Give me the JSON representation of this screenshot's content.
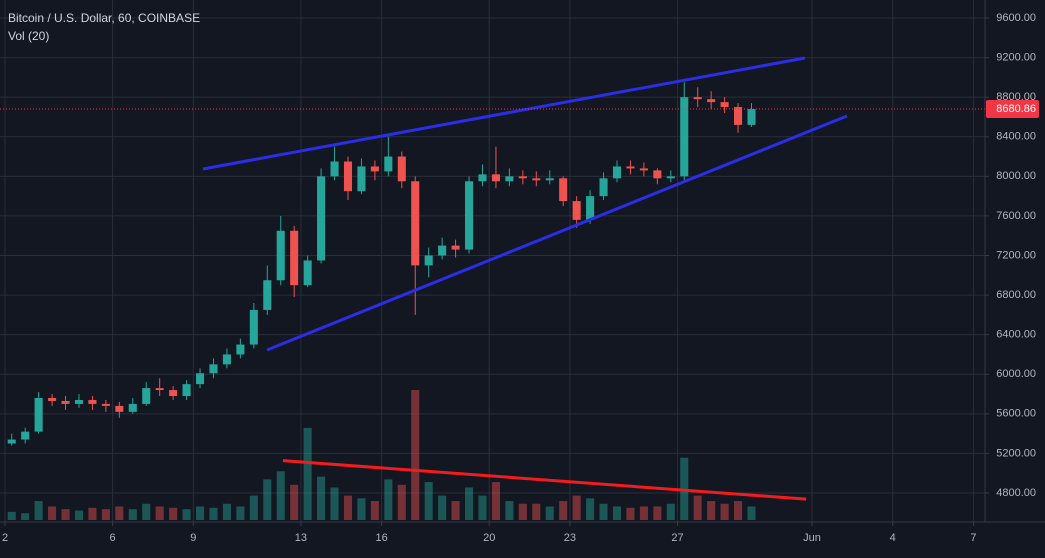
{
  "chart_data": {
    "type": "candlestick",
    "title": "Bitcoin / U.S. Dollar, 60, COINBASE",
    "subtitle": "Vol (20)",
    "x": [
      2.25,
      2.75,
      3.25,
      3.75,
      4.25,
      4.75,
      5.25,
      5.75,
      6.25,
      6.75,
      7.25,
      7.75,
      8.25,
      8.75,
      9.25,
      9.75,
      10.25,
      10.75,
      11.25,
      11.75,
      12.25,
      12.75,
      13.25,
      13.75,
      14.25,
      14.75,
      15.25,
      15.75,
      16.25,
      16.75,
      17.25,
      17.75,
      18.25,
      18.75,
      19.25,
      19.75,
      20.25,
      20.75,
      21.25,
      21.75,
      22.25,
      22.75,
      23.25,
      23.75,
      24.25,
      24.75,
      25.25,
      25.75,
      26.25,
      26.75,
      27.25,
      27.75,
      28.25,
      28.75,
      29.25,
      29.75
    ],
    "open": [
      5300,
      5340,
      5420,
      5760,
      5730,
      5700,
      5740,
      5700,
      5680,
      5620,
      5700,
      5860,
      5840,
      5780,
      5900,
      6010,
      6100,
      6200,
      6300,
      6650,
      6950,
      7450,
      6900,
      7150,
      8000,
      8150,
      7850,
      8100,
      8050,
      8200,
      7950,
      7100,
      7200,
      7300,
      7260,
      7950,
      8020,
      7950,
      8000,
      7980,
      7960,
      7980,
      7750,
      7560,
      7800,
      7980,
      8100,
      8080,
      8060,
      7980,
      8000,
      8800,
      8780,
      8750,
      8700,
      8520
    ],
    "high": [
      5400,
      5460,
      5820,
      5800,
      5780,
      5800,
      5780,
      5740,
      5720,
      5760,
      5920,
      5960,
      5880,
      5940,
      6060,
      6160,
      6260,
      6360,
      6720,
      7100,
      7600,
      7500,
      7200,
      8080,
      8300,
      8200,
      8180,
      8160,
      8400,
      8250,
      8000,
      7280,
      7380,
      7360,
      8000,
      8120,
      8300,
      8080,
      8060,
      8050,
      8060,
      8000,
      7800,
      7860,
      8040,
      8160,
      8160,
      8140,
      8080,
      8060,
      8950,
      8900,
      8860,
      8800,
      8740,
      8740
    ],
    "low": [
      5280,
      5300,
      5400,
      5680,
      5640,
      5660,
      5640,
      5620,
      5560,
      5600,
      5680,
      5780,
      5740,
      5740,
      5860,
      5960,
      6060,
      6160,
      6260,
      6600,
      6900,
      6780,
      6880,
      7120,
      7960,
      7760,
      7820,
      7960,
      8000,
      7880,
      6600,
      6980,
      7160,
      7180,
      7220,
      7900,
      7880,
      7900,
      7920,
      7900,
      7920,
      7700,
      7480,
      7520,
      7760,
      7940,
      8020,
      8000,
      7920,
      7940,
      7960,
      8700,
      8680,
      8640,
      8440,
      8500
    ],
    "close": [
      5340,
      5420,
      5760,
      5730,
      5700,
      5740,
      5700,
      5680,
      5620,
      5700,
      5860,
      5840,
      5780,
      5900,
      6010,
      6100,
      6200,
      6300,
      6650,
      6950,
      7450,
      6900,
      7150,
      8000,
      8150,
      7850,
      8100,
      8050,
      8200,
      7950,
      7100,
      7200,
      7300,
      7260,
      7950,
      8020,
      7950,
      8000,
      7980,
      7960,
      7980,
      7750,
      7560,
      7800,
      7980,
      8100,
      8080,
      8060,
      7980,
      8000,
      8800,
      8780,
      8750,
      8700,
      8520,
      8680
    ],
    "volume": [
      300,
      250,
      700,
      500,
      400,
      350,
      450,
      400,
      500,
      400,
      600,
      500,
      450,
      400,
      500,
      450,
      600,
      500,
      900,
      1500,
      1800,
      1300,
      3400,
      1600,
      1200,
      900,
      800,
      700,
      1500,
      1300,
      4800,
      1400,
      900,
      700,
      1200,
      900,
      1400,
      700,
      600,
      600,
      500,
      700,
      900,
      800,
      600,
      500,
      450,
      500,
      500,
      600,
      2300,
      900,
      700,
      600,
      700,
      500
    ],
    "up_color": "#26a69a",
    "down_color": "#ef5350",
    "xlim": [
      1.814,
      38.43
    ],
    "xticks": [
      2,
      6,
      9,
      13,
      16,
      20,
      23,
      27,
      {
        "value": 32,
        "label": "Jun"
      },
      {
        "value": 35,
        "label": "4"
      },
      {
        "value": 38,
        "label": "7"
      }
    ],
    "ylim": [
      4527,
      9782
    ],
    "yticks": [
      {
        "value": 4800,
        "label": "4800.00"
      },
      {
        "value": 5200,
        "label": "5200.00"
      },
      {
        "value": 5600,
        "label": "5600.00"
      },
      {
        "value": 6000,
        "label": "6000.00"
      },
      {
        "value": 6400,
        "label": "6400.00"
      },
      {
        "value": 6800,
        "label": "6800.00"
      },
      {
        "value": 7200,
        "label": "7200.00"
      },
      {
        "value": 7600,
        "label": "7600.00"
      },
      {
        "value": 8000,
        "label": "8000.00"
      },
      {
        "value": 8400,
        "label": "8400.00"
      },
      {
        "value": 8800,
        "label": "8800.00"
      },
      {
        "value": 9200,
        "label": "9200.00"
      },
      {
        "value": 9600,
        "label": "9600.00"
      }
    ],
    "grid": true,
    "current_price": 8680.86,
    "current_price_color": "#f23645",
    "trend_lines": [
      {
        "color": "#2b2ee6",
        "x": [
          9.36,
          31.74
        ],
        "values": [
          8074,
          9196
        ]
      },
      {
        "color": "#2b2ee6",
        "x": [
          11.74,
          33.3
        ],
        "values": [
          6245,
          8610
        ]
      },
      {
        "color": "#f21c1c",
        "axis": "volume",
        "x": [
          12.33,
          31.78
        ],
        "values": [
          2192,
          769
        ]
      }
    ]
  }
}
